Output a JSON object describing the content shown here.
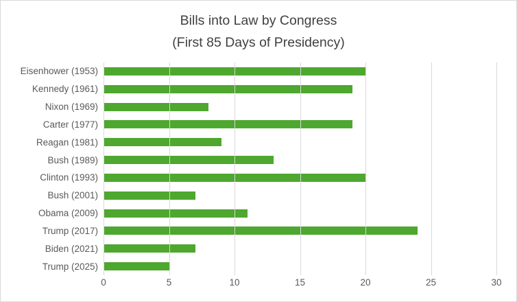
{
  "chart": {
    "title": "Bills into Law by Congress",
    "subtitle": "(First 85 Days of Presidency)"
  },
  "chart_data": {
    "type": "bar",
    "orientation": "horizontal",
    "title": "Bills into Law by Congress (First 85 Days of Presidency)",
    "categories": [
      "Eisenhower (1953)",
      "Kennedy (1961)",
      "Nixon (1969)",
      "Carter (1977)",
      "Reagan (1981)",
      "Bush (1989)",
      "Clinton (1993)",
      "Bush (2001)",
      "Obama (2009)",
      "Trump (2017)",
      "Biden (2021)",
      "Trump (2025)"
    ],
    "values": [
      20,
      19,
      8,
      19,
      9,
      13,
      20,
      7,
      11,
      24,
      7,
      5
    ],
    "xlabel": "",
    "ylabel": "",
    "xlim": [
      0,
      30
    ],
    "xticks": [
      0,
      5,
      10,
      15,
      20,
      25,
      30
    ],
    "grid": true,
    "legend": "none",
    "colors": {
      "bar": "#4EA72E",
      "gridline": "#D9D9D9",
      "axis_text": "#595959",
      "title_text": "#404040",
      "chart_border": "#D9D9D9",
      "background": "#FFFFFF"
    }
  }
}
